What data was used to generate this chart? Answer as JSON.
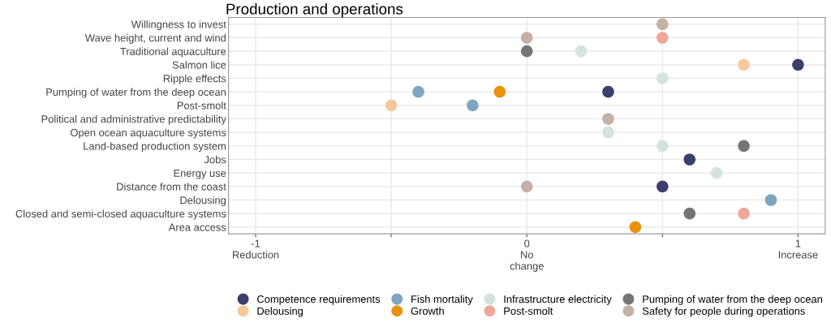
{
  "chart_data": {
    "type": "scatter",
    "title": "Production and operations",
    "orientation": "horizontal",
    "categories": [
      "Willingness to invest",
      "Wave height, current and wind",
      "Traditional aquaculture",
      "Salmon lice",
      "Ripple effects",
      "Pumping of water from the deep ocean",
      "Post-smolt",
      "Political and administrative predictability",
      "Open ocean aquaculture systems",
      "Land-based production system",
      "Jobs",
      "Energy use",
      "Distance from the coast",
      "Delousing",
      "Closed and semi-closed aquaculture systems",
      "Area access"
    ],
    "series": [
      {
        "name": "Competence requirements",
        "color": "#3b3f6e",
        "values": [
          null,
          null,
          null,
          1,
          null,
          0.3,
          null,
          null,
          null,
          null,
          0.6,
          null,
          0.5,
          null,
          null,
          null
        ]
      },
      {
        "name": "Delousing",
        "color": "#f5c99b",
        "values": [
          null,
          null,
          null,
          0.8,
          null,
          null,
          -0.5,
          null,
          null,
          null,
          null,
          null,
          null,
          null,
          null,
          null
        ]
      },
      {
        "name": "Fish mortality",
        "color": "#7ea6c0",
        "values": [
          null,
          null,
          null,
          null,
          null,
          -0.4,
          -0.2,
          null,
          null,
          null,
          null,
          null,
          null,
          0.9,
          null,
          null
        ]
      },
      {
        "name": "Growth",
        "color": "#e8920d",
        "values": [
          null,
          null,
          null,
          null,
          null,
          -0.1,
          null,
          null,
          null,
          null,
          null,
          null,
          null,
          null,
          null,
          0.4
        ]
      },
      {
        "name": "Infrastructure electricity",
        "color": "#d5e3e0",
        "values": [
          null,
          null,
          0.2,
          null,
          0.5,
          null,
          null,
          null,
          0.3,
          0.5,
          null,
          0.7,
          null,
          null,
          null,
          null
        ]
      },
      {
        "name": "Post-smolt",
        "color": "#eea898",
        "values": [
          null,
          0.5,
          null,
          null,
          null,
          null,
          null,
          null,
          null,
          null,
          null,
          null,
          null,
          null,
          0.8,
          null
        ]
      },
      {
        "name": "Pumping of water from the deep ocean",
        "color": "#737577",
        "values": [
          null,
          null,
          0,
          null,
          null,
          null,
          null,
          null,
          null,
          0.8,
          null,
          null,
          null,
          null,
          0.6,
          null
        ]
      },
      {
        "name": "Safety for people during operations",
        "color": "#c4b0a5",
        "values": [
          0.5,
          0,
          null,
          null,
          null,
          null,
          null,
          0.3,
          null,
          null,
          null,
          null,
          0,
          null,
          null,
          null
        ]
      }
    ],
    "xlim": [
      -1.1,
      1.1
    ],
    "xticks": [
      {
        "value": -1,
        "label": "-1\nReduction"
      },
      {
        "value": -0.5,
        "label": null
      },
      {
        "value": 0,
        "label": "0\nNo\nchange"
      },
      {
        "value": 0.5,
        "label": null
      },
      {
        "value": 1,
        "label": "1\nIncrease"
      }
    ],
    "grid": true,
    "legend": "bottom",
    "marker": "circle"
  }
}
